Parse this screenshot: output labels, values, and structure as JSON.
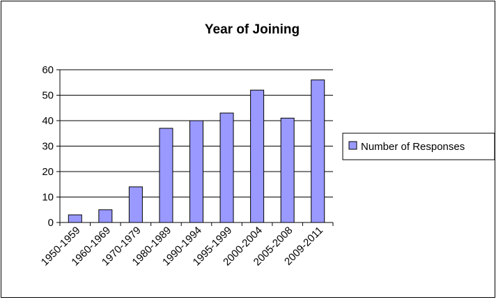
{
  "chart_data": {
    "type": "bar",
    "title": "Year of Joining",
    "xlabel": "",
    "ylabel": "",
    "categories": [
      "1950-1959",
      "1960-1969",
      "1970-1979",
      "1980-1989",
      "1990-1994",
      "1995-1999",
      "2000-2004",
      "2005-2008",
      "2009-2011"
    ],
    "series": [
      {
        "name": "Number of Responses",
        "values": [
          3,
          5,
          14,
          37,
          40,
          43,
          52,
          41,
          56
        ],
        "color": "#9999ff"
      }
    ],
    "ylim": [
      0,
      60
    ],
    "yticks": [
      0,
      10,
      20,
      30,
      40,
      50,
      60
    ],
    "grid": true,
    "legend": "right"
  }
}
